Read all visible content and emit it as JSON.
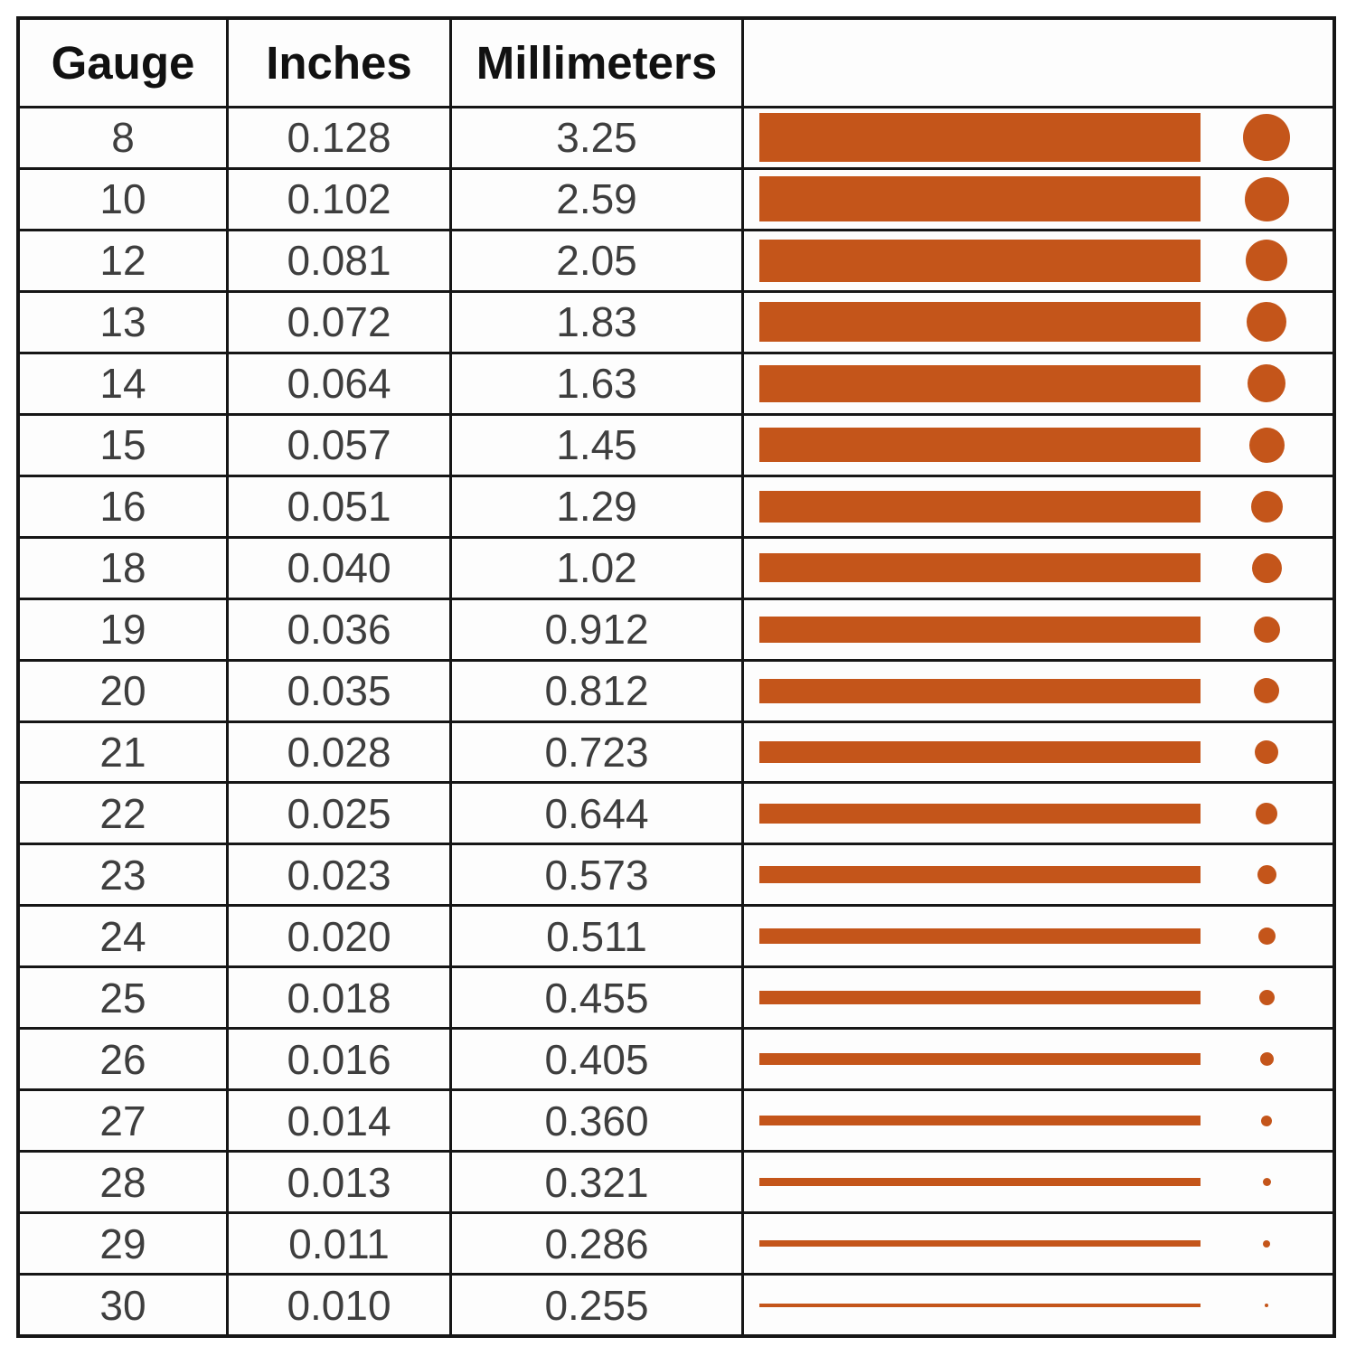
{
  "colors": {
    "wire": "#c4551a",
    "border": "#161616",
    "value_text": "#3e3e3e",
    "header_text": "#111111",
    "background": "#ffffff"
  },
  "table": {
    "headers": {
      "gauge": "Gauge",
      "inches": "Inches",
      "millimeters": "Millimeters",
      "visual": ""
    },
    "rows": [
      {
        "gauge": "8",
        "inches": "0.128",
        "mm": "3.25",
        "bar": 54,
        "dot": 52
      },
      {
        "gauge": "10",
        "inches": "0.102",
        "mm": "2.59",
        "bar": 50,
        "dot": 49
      },
      {
        "gauge": "12",
        "inches": "0.081",
        "mm": "2.05",
        "bar": 47,
        "dot": 46
      },
      {
        "gauge": "13",
        "inches": "0.072",
        "mm": "1.83",
        "bar": 44,
        "dot": 44
      },
      {
        "gauge": "14",
        "inches": "0.064",
        "mm": "1.63",
        "bar": 41,
        "dot": 42
      },
      {
        "gauge": "15",
        "inches": "0.057",
        "mm": "1.45",
        "bar": 38,
        "dot": 39
      },
      {
        "gauge": "16",
        "inches": "0.051",
        "mm": "1.29",
        "bar": 35,
        "dot": 35
      },
      {
        "gauge": "18",
        "inches": "0.040",
        "mm": "1.02",
        "bar": 32,
        "dot": 33
      },
      {
        "gauge": "19",
        "inches": "0.036",
        "mm": "0.912",
        "bar": 29,
        "dot": 29
      },
      {
        "gauge": "20",
        "inches": "0.035",
        "mm": "0.812",
        "bar": 27,
        "dot": 28
      },
      {
        "gauge": "21",
        "inches": "0.028",
        "mm": "0.723",
        "bar": 24,
        "dot": 26
      },
      {
        "gauge": "22",
        "inches": "0.025",
        "mm": "0.644",
        "bar": 22,
        "dot": 24
      },
      {
        "gauge": "23",
        "inches": "0.023",
        "mm": "0.573",
        "bar": 19,
        "dot": 21
      },
      {
        "gauge": "24",
        "inches": "0.020",
        "mm": "0.511",
        "bar": 17,
        "dot": 19
      },
      {
        "gauge": "25",
        "inches": "0.018",
        "mm": "0.455",
        "bar": 15,
        "dot": 17
      },
      {
        "gauge": "26",
        "inches": "0.016",
        "mm": "0.405",
        "bar": 13,
        "dot": 15
      },
      {
        "gauge": "27",
        "inches": "0.014",
        "mm": "0.360",
        "bar": 11,
        "dot": 12
      },
      {
        "gauge": "28",
        "inches": "0.013",
        "mm": "0.321",
        "bar": 9,
        "dot": 9
      },
      {
        "gauge": "29",
        "inches": "0.011",
        "mm": "0.286",
        "bar": 7,
        "dot": 8
      },
      {
        "gauge": "30",
        "inches": "0.010",
        "mm": "0.255",
        "bar": 4,
        "dot": 4
      }
    ]
  },
  "chart_data": {
    "type": "table",
    "title": "",
    "columns": [
      "Gauge",
      "Inches",
      "Millimeters"
    ],
    "gauges": [
      8,
      10,
      12,
      13,
      14,
      15,
      16,
      18,
      19,
      20,
      21,
      22,
      23,
      24,
      25,
      26,
      27,
      28,
      29,
      30
    ],
    "inches": [
      0.128,
      0.102,
      0.081,
      0.072,
      0.064,
      0.057,
      0.051,
      0.04,
      0.036,
      0.035,
      0.028,
      0.025,
      0.023,
      0.02,
      0.018,
      0.016,
      0.014,
      0.013,
      0.011,
      0.01
    ],
    "millimeters": [
      3.25,
      2.59,
      2.05,
      1.83,
      1.63,
      1.45,
      1.29,
      1.02,
      0.912,
      0.812,
      0.723,
      0.644,
      0.573,
      0.511,
      0.455,
      0.405,
      0.36,
      0.321,
      0.286,
      0.255
    ],
    "visual_encoding": "each row shows a horizontal bar whose thickness and a circular dot whose diameter scale with the wire diameter in millimeters",
    "bar_color": "#c4551a",
    "legend_position": "none",
    "grid": true
  }
}
